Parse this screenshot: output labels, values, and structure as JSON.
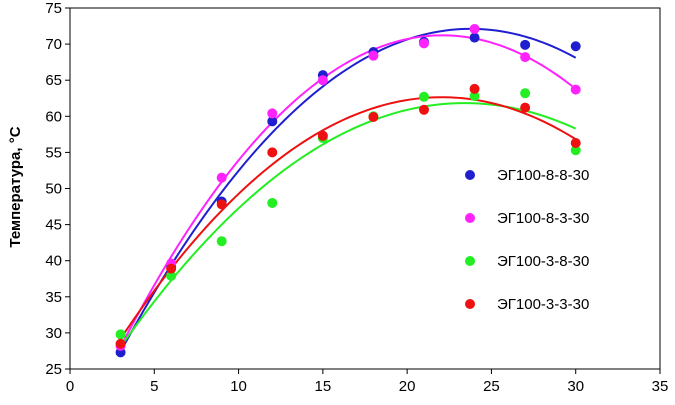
{
  "chart_data": {
    "type": "scatter",
    "title": "",
    "xlabel": "",
    "ylabel": "Температура, °С",
    "xlim": [
      0,
      35
    ],
    "ylim": [
      25,
      75
    ],
    "xticks": [
      0,
      5,
      10,
      15,
      20,
      25,
      30,
      35
    ],
    "yticks": [
      25,
      30,
      35,
      40,
      45,
      50,
      55,
      60,
      65,
      70,
      75
    ],
    "grid": false,
    "legend_position": "right",
    "trendline": "polynomial",
    "series": [
      {
        "name": "ЭГ100-8-8-30",
        "color": "#1f1fd0",
        "points": [
          [
            3,
            27.3
          ],
          [
            6,
            39.2
          ],
          [
            9,
            48.2
          ],
          [
            12,
            59.3
          ],
          [
            15,
            65.7
          ],
          [
            18,
            68.9
          ],
          [
            21,
            70.3
          ],
          [
            24,
            70.9
          ],
          [
            27,
            69.9
          ],
          [
            30,
            69.7
          ]
        ]
      },
      {
        "name": "ЭГ100-8-3-30",
        "color": "#ff22ff",
        "points": [
          [
            3,
            28.2
          ],
          [
            6,
            39.6
          ],
          [
            9,
            51.5
          ],
          [
            12,
            60.4
          ],
          [
            15,
            65.0
          ],
          [
            18,
            68.4
          ],
          [
            21,
            70.1
          ],
          [
            24,
            72.1
          ],
          [
            27,
            68.2
          ],
          [
            30,
            63.7
          ]
        ]
      },
      {
        "name": "ЭГ100-3-8-30",
        "color": "#22ee22",
        "points": [
          [
            3,
            29.8
          ],
          [
            6,
            37.9
          ],
          [
            9,
            42.7
          ],
          [
            12,
            48.0
          ],
          [
            15,
            57.0
          ],
          [
            18,
            60.0
          ],
          [
            21,
            62.7
          ],
          [
            24,
            62.8
          ],
          [
            27,
            63.2
          ],
          [
            30,
            55.3
          ]
        ]
      },
      {
        "name": "ЭГ100-3-3-30",
        "color": "#ee1111",
        "points": [
          [
            3,
            28.5
          ],
          [
            6,
            38.9
          ],
          [
            9,
            47.8
          ],
          [
            12,
            55.0
          ],
          [
            15,
            57.3
          ],
          [
            18,
            59.9
          ],
          [
            21,
            60.9
          ],
          [
            24,
            63.8
          ],
          [
            27,
            61.2
          ],
          [
            30,
            56.3
          ]
        ]
      }
    ]
  }
}
